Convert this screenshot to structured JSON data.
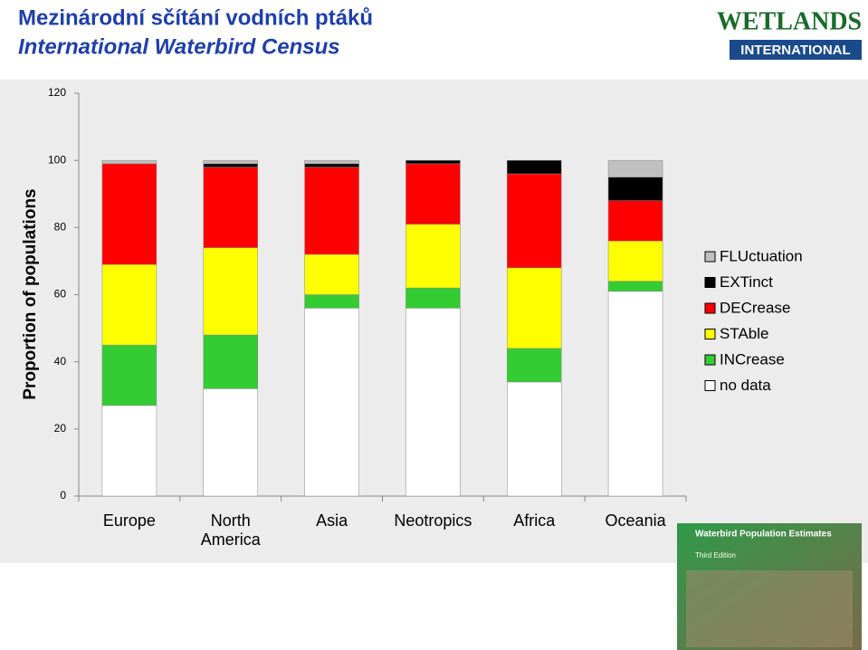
{
  "header": {
    "title_cz": "Mezinárodní sčítání vodních ptáků",
    "title_en": "International Waterbird Census"
  },
  "logo": {
    "line1": "WETLANDS",
    "line2": "INTERNATIONAL"
  },
  "book": {
    "title": "Waterbird Population Estimates",
    "edition": "Third Edition"
  },
  "chart_data": {
    "type": "stacked-bar",
    "ylabel": "Proportion of populations",
    "categories": [
      "Europe",
      "North America",
      "Asia",
      "Neotropics",
      "Africa",
      "Oceania"
    ],
    "ylim": [
      0,
      120
    ],
    "yticks": [
      0,
      20,
      40,
      60,
      80,
      100,
      120
    ],
    "series": [
      {
        "name": "no data",
        "color": "#ffffff",
        "values": [
          27,
          32,
          56,
          56,
          34,
          61
        ]
      },
      {
        "name": "INCrease",
        "color": "#33cc33",
        "values": [
          18,
          16,
          4,
          6,
          10,
          3
        ]
      },
      {
        "name": "STAble",
        "color": "#ffff00",
        "values": [
          24,
          26,
          12,
          19,
          24,
          12
        ]
      },
      {
        "name": "DECrease",
        "color": "#ff0000",
        "values": [
          30,
          24,
          26,
          18,
          28,
          12
        ]
      },
      {
        "name": "EXTinct",
        "color": "#000000",
        "values": [
          0,
          1,
          1,
          1,
          4,
          7
        ]
      },
      {
        "name": "FLUctuation",
        "color": "#c0c0c0",
        "values": [
          1,
          1,
          1,
          0,
          0,
          5
        ]
      }
    ]
  }
}
